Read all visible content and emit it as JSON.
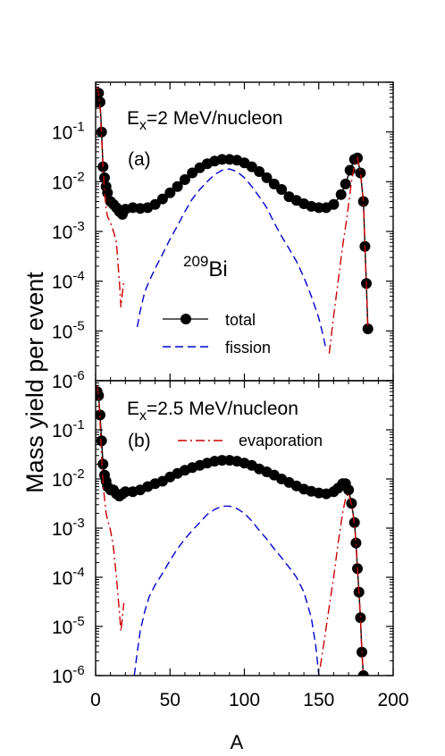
{
  "chart_data": {
    "type": "line",
    "ylabel": "Mass yield per event",
    "xlabel": "A",
    "xlim": [
      0,
      200
    ],
    "x_ticks": [
      "0",
      "50",
      "100",
      "150",
      "200"
    ],
    "ylim_log10": [
      -6,
      0
    ],
    "y_ticks_a": [
      {
        "base": "10",
        "exp": "-6"
      },
      {
        "base": "10",
        "exp": "-5"
      },
      {
        "base": "10",
        "exp": "-4"
      },
      {
        "base": "10",
        "exp": "-3"
      },
      {
        "base": "10",
        "exp": "-2"
      },
      {
        "base": "10",
        "exp": "-1"
      }
    ],
    "y_ticks_b": [
      {
        "base": "10",
        "exp": "-6"
      },
      {
        "base": "10",
        "exp": "-5"
      },
      {
        "base": "10",
        "exp": "-4"
      },
      {
        "base": "10",
        "exp": "-3"
      },
      {
        "base": "10",
        "exp": "-2"
      },
      {
        "base": "10",
        "exp": "-1"
      }
    ],
    "legend": {
      "total": "total",
      "fission": "fission",
      "evaporation": "evaporation"
    },
    "colors": {
      "total": "#000000",
      "fission": "#0000cc",
      "evaporation": "#cc0000"
    },
    "nucleus": {
      "mass": "209",
      "symbol": "Bi"
    },
    "panels": [
      {
        "label": "(a)",
        "energy_prefix": "E",
        "energy_sub": "x",
        "energy_rest": "=2 MeV/nucleon",
        "series": [
          {
            "name": "total",
            "style": "line-markers",
            "points": [
              [
                1,
                0.4
              ],
              [
                2,
                0.6
              ],
              [
                3,
                0.4
              ],
              [
                4,
                0.1
              ],
              [
                5,
                0.02
              ],
              [
                6,
                0.012
              ],
              [
                7,
                0.008
              ],
              [
                8,
                0.006
              ],
              [
                10,
                0.004
              ],
              [
                12,
                0.0035
              ],
              [
                14,
                0.003
              ],
              [
                16,
                0.0025
              ],
              [
                18,
                0.0022
              ],
              [
                20,
                0.0028
              ],
              [
                25,
                0.003
              ],
              [
                30,
                0.0029
              ],
              [
                35,
                0.003
              ],
              [
                40,
                0.0035
              ],
              [
                45,
                0.0045
              ],
              [
                50,
                0.006
              ],
              [
                55,
                0.008
              ],
              [
                60,
                0.011
              ],
              [
                65,
                0.015
              ],
              [
                70,
                0.019
              ],
              [
                75,
                0.023
              ],
              [
                80,
                0.026
              ],
              [
                85,
                0.028
              ],
              [
                90,
                0.028
              ],
              [
                95,
                0.027
              ],
              [
                100,
                0.024
              ],
              [
                105,
                0.02
              ],
              [
                110,
                0.016
              ],
              [
                115,
                0.012
              ],
              [
                120,
                0.009
              ],
              [
                125,
                0.007
              ],
              [
                130,
                0.005
              ],
              [
                135,
                0.0042
              ],
              [
                140,
                0.0036
              ],
              [
                145,
                0.0032
              ],
              [
                150,
                0.003
              ],
              [
                155,
                0.003
              ],
              [
                160,
                0.0035
              ],
              [
                165,
                0.0055
              ],
              [
                168,
                0.009
              ],
              [
                171,
                0.017
              ],
              [
                174,
                0.028
              ],
              [
                176,
                0.03
              ],
              [
                178,
                0.015
              ],
              [
                180,
                0.004
              ],
              [
                181,
                0.0005
              ],
              [
                182,
                9e-05
              ],
              [
                183,
                1.1e-05
              ]
            ]
          },
          {
            "name": "fission",
            "style": "dashed",
            "points": [
              [
                28,
                1.2e-05
              ],
              [
                30,
                2.5e-05
              ],
              [
                33,
                6e-05
              ],
              [
                36,
                0.0001
              ],
              [
                40,
                0.00018
              ],
              [
                45,
                0.00035
              ],
              [
                50,
                0.0007
              ],
              [
                55,
                0.0013
              ],
              [
                60,
                0.0025
              ],
              [
                65,
                0.0045
              ],
              [
                70,
                0.007
              ],
              [
                75,
                0.01
              ],
              [
                80,
                0.014
              ],
              [
                85,
                0.017
              ],
              [
                90,
                0.018
              ],
              [
                95,
                0.016
              ],
              [
                100,
                0.012
              ],
              [
                105,
                0.008
              ],
              [
                110,
                0.005
              ],
              [
                115,
                0.003
              ],
              [
                120,
                0.0015
              ],
              [
                125,
                0.0008
              ],
              [
                130,
                0.00045
              ],
              [
                135,
                0.00025
              ],
              [
                140,
                0.00012
              ],
              [
                145,
                5e-05
              ],
              [
                150,
                1.8e-05
              ],
              [
                153,
                8e-06
              ],
              [
                155,
                4e-06
              ]
            ]
          },
          {
            "name": "evaporation",
            "style": "dash-dot",
            "points": [
              [
                1,
                0.8
              ],
              [
                2,
                0.6
              ],
              [
                3,
                0.3
              ],
              [
                4,
                0.08
              ],
              [
                5,
                0.02
              ],
              [
                6,
                0.006
              ],
              [
                7,
                0.003
              ],
              [
                8,
                0.002
              ],
              [
                10,
                0.0015
              ],
              [
                12,
                0.001
              ],
              [
                14,
                0.0006
              ],
              [
                16,
                0.0001
              ],
              [
                17,
                3e-05
              ],
              [
                18,
                6e-05
              ],
              [
                19,
                0.0001
              ]
            ]
          },
          {
            "name": "evaporation",
            "style": "dash-dot",
            "points": [
              [
                157,
                3.5e-06
              ],
              [
                160,
                2e-05
              ],
              [
                163,
                0.0001
              ],
              [
                166,
                0.0005
              ],
              [
                169,
                0.002
              ],
              [
                172,
                0.01
              ],
              [
                174,
                0.022
              ],
              [
                176,
                0.03
              ],
              [
                178,
                0.015
              ],
              [
                180,
                0.004
              ],
              [
                181,
                0.0005
              ],
              [
                182,
                9e-05
              ],
              [
                183,
                1.1e-05
              ]
            ]
          }
        ]
      },
      {
        "label": "(b)",
        "energy_prefix": "E",
        "energy_sub": "x",
        "energy_rest": "=2.5 MeV/nucleon",
        "series": [
          {
            "name": "total",
            "style": "line-markers",
            "points": [
              [
                1,
                0.6
              ],
              [
                2,
                0.5
              ],
              [
                3,
                0.2
              ],
              [
                4,
                0.06
              ],
              [
                5,
                0.02
              ],
              [
                6,
                0.012
              ],
              [
                7,
                0.009
              ],
              [
                8,
                0.007
              ],
              [
                10,
                0.006
              ],
              [
                12,
                0.006
              ],
              [
                14,
                0.005
              ],
              [
                16,
                0.0045
              ],
              [
                18,
                0.005
              ],
              [
                20,
                0.0055
              ],
              [
                25,
                0.0055
              ],
              [
                30,
                0.006
              ],
              [
                35,
                0.007
              ],
              [
                40,
                0.008
              ],
              [
                45,
                0.009
              ],
              [
                50,
                0.011
              ],
              [
                55,
                0.013
              ],
              [
                60,
                0.015
              ],
              [
                65,
                0.017
              ],
              [
                70,
                0.019
              ],
              [
                75,
                0.021
              ],
              [
                80,
                0.023
              ],
              [
                85,
                0.024
              ],
              [
                90,
                0.024
              ],
              [
                95,
                0.023
              ],
              [
                100,
                0.021
              ],
              [
                105,
                0.019
              ],
              [
                110,
                0.016
              ],
              [
                115,
                0.014
              ],
              [
                120,
                0.012
              ],
              [
                125,
                0.01
              ],
              [
                130,
                0.0085
              ],
              [
                135,
                0.0072
              ],
              [
                140,
                0.0062
              ],
              [
                145,
                0.0056
              ],
              [
                150,
                0.0052
              ],
              [
                155,
                0.005
              ],
              [
                160,
                0.0055
              ],
              [
                163,
                0.0065
              ],
              [
                166,
                0.008
              ],
              [
                168,
                0.008
              ],
              [
                170,
                0.006
              ],
              [
                172,
                0.0032
              ],
              [
                174,
                0.0013
              ],
              [
                175,
                0.0005
              ],
              [
                176,
                0.00015
              ],
              [
                177,
                5e-05
              ],
              [
                178,
                1.5e-05
              ],
              [
                179,
                3e-06
              ],
              [
                180,
                1e-06
              ]
            ]
          },
          {
            "name": "fission",
            "style": "dashed",
            "points": [
              [
                26,
                1e-06
              ],
              [
                28,
                3e-06
              ],
              [
                30,
                8e-06
              ],
              [
                33,
                2e-05
              ],
              [
                36,
                4e-05
              ],
              [
                40,
                7e-05
              ],
              [
                45,
                0.00012
              ],
              [
                50,
                0.00022
              ],
              [
                55,
                0.00038
              ],
              [
                60,
                0.0006
              ],
              [
                65,
                0.0009
              ],
              [
                70,
                0.0013
              ],
              [
                75,
                0.0019
              ],
              [
                80,
                0.0024
              ],
              [
                85,
                0.0028
              ],
              [
                90,
                0.0028
              ],
              [
                95,
                0.0025
              ],
              [
                100,
                0.002
              ],
              [
                105,
                0.0014
              ],
              [
                110,
                0.0009
              ],
              [
                115,
                0.0006
              ],
              [
                120,
                0.00038
              ],
              [
                125,
                0.00025
              ],
              [
                130,
                0.00016
              ],
              [
                135,
                0.0001
              ],
              [
                140,
                5e-05
              ],
              [
                145,
                1.5e-05
              ],
              [
                148,
                4e-06
              ],
              [
                150,
                1e-06
              ]
            ]
          },
          {
            "name": "evaporation",
            "style": "dash-dot",
            "points": [
              [
                1,
                0.8
              ],
              [
                2,
                0.5
              ],
              [
                3,
                0.15
              ],
              [
                4,
                0.03
              ],
              [
                5,
                0.008
              ],
              [
                6,
                0.004
              ],
              [
                7,
                0.002
              ],
              [
                8,
                0.0015
              ],
              [
                10,
                0.0009
              ],
              [
                12,
                0.0004
              ],
              [
                14,
                0.0001
              ],
              [
                16,
                2e-05
              ],
              [
                17,
                8e-06
              ],
              [
                18,
                1.5e-05
              ],
              [
                19,
                3e-05
              ]
            ]
          },
          {
            "name": "evaporation",
            "style": "dash-dot",
            "points": [
              [
                151,
                1.5e-06
              ],
              [
                154,
                6e-06
              ],
              [
                157,
                2.5e-05
              ],
              [
                160,
                0.0001
              ],
              [
                163,
                0.0005
              ],
              [
                166,
                0.002
              ],
              [
                168,
                0.004
              ],
              [
                170,
                0.005
              ],
              [
                172,
                0.003
              ],
              [
                174,
                0.0012
              ],
              [
                175,
                0.0005
              ],
              [
                176,
                0.00015
              ],
              [
                177,
                5e-05
              ],
              [
                178,
                1.5e-05
              ],
              [
                179,
                3e-06
              ],
              [
                180,
                1e-06
              ]
            ]
          }
        ]
      }
    ]
  }
}
